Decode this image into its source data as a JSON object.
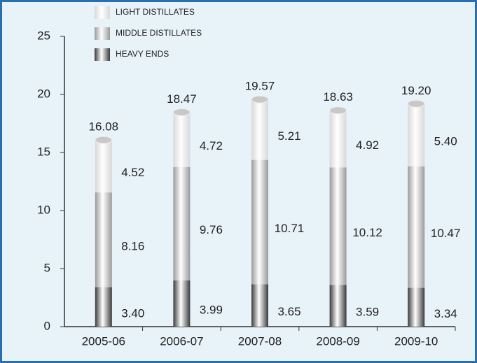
{
  "chart_data": {
    "type": "stacked_bar",
    "categories": [
      "2005-06",
      "2006-07",
      "2007-08",
      "2008-09",
      "2009-10"
    ],
    "series": [
      {
        "name": "LIGHT DISTILLATES",
        "color": "#d8d8d8",
        "values": [
          4.52,
          4.72,
          5.21,
          4.92,
          5.4
        ],
        "value_labels": [
          "4.52",
          "4.72",
          "5.21",
          "4.92",
          "5.40"
        ]
      },
      {
        "name": "MIDDLE DISTILLATES",
        "color": "#9a9a9a",
        "values": [
          8.16,
          9.76,
          10.71,
          10.12,
          10.47
        ]
      },
      {
        "name": "HEAVY ENDS",
        "color": "#3a3a3a",
        "values": [
          3.4,
          3.99,
          3.65,
          3.59,
          3.34
        ],
        "value_labels": [
          "3.40",
          "3.99",
          "3.65",
          "3.59",
          "3.34"
        ]
      }
    ],
    "totals": [
      16.08,
      18.47,
      19.57,
      18.63,
      19.2
    ],
    "total_labels": [
      "16.08",
      "18.47",
      "19.57",
      "18.63",
      "19.20"
    ],
    "ylim": [
      0,
      25
    ],
    "yticks": [
      0,
      5,
      10,
      15,
      20,
      25
    ],
    "grid": false,
    "legend": "top-left"
  }
}
